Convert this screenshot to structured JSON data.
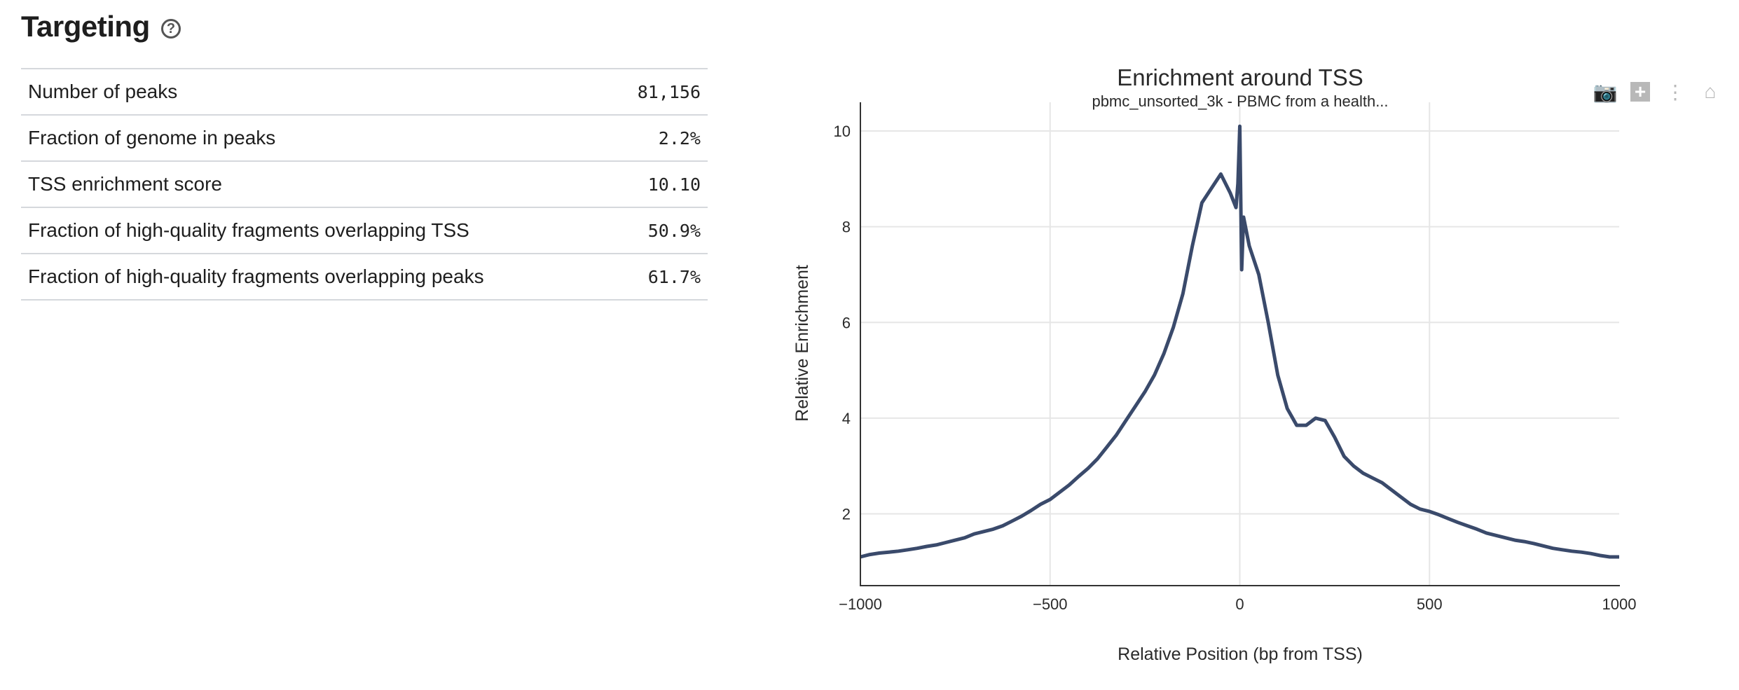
{
  "section": {
    "title": "Targeting",
    "help_icon": "question-circle-icon"
  },
  "metrics": [
    {
      "label": "Number of peaks",
      "value": "81,156"
    },
    {
      "label": "Fraction of genome in peaks",
      "value": "2.2%"
    },
    {
      "label": "TSS enrichment score",
      "value": "10.10"
    },
    {
      "label": "Fraction of high-quality fragments overlapping TSS",
      "value": "50.9%"
    },
    {
      "label": "Fraction of high-quality fragments overlapping peaks",
      "value": "61.7%"
    }
  ],
  "modebar": [
    "camera-icon",
    "zoom-in-icon",
    "autoscale-icon",
    "home-icon"
  ],
  "chart_data": {
    "type": "line",
    "title": "Enrichment around TSS",
    "subtitle": "pbmc_unsorted_3k - PBMC from a health...",
    "xlabel": "Relative Position (bp from TSS)",
    "ylabel": "Relative Enrichment",
    "xlim": [
      -1000,
      1000
    ],
    "ylim": [
      0.5,
      10.6
    ],
    "xticks": [
      -1000,
      -500,
      0,
      500,
      1000
    ],
    "xtick_labels": [
      "−1000",
      "−500",
      "0",
      "500",
      "1000"
    ],
    "yticks": [
      2,
      4,
      6,
      8,
      10
    ],
    "ytick_labels": [
      "2",
      "4",
      "6",
      "8",
      "10"
    ],
    "grid": true,
    "line_color": "#3a4a6b",
    "x": [
      -1000,
      -975,
      -950,
      -925,
      -900,
      -875,
      -850,
      -825,
      -800,
      -775,
      -750,
      -725,
      -700,
      -675,
      -650,
      -625,
      -600,
      -575,
      -550,
      -525,
      -500,
      -475,
      -450,
      -425,
      -400,
      -375,
      -350,
      -325,
      -300,
      -275,
      -250,
      -225,
      -200,
      -175,
      -150,
      -125,
      -100,
      -75,
      -50,
      -25,
      -10,
      -5,
      0,
      5,
      10,
      25,
      50,
      75,
      100,
      125,
      150,
      175,
      200,
      225,
      250,
      275,
      300,
      325,
      350,
      375,
      400,
      425,
      450,
      475,
      500,
      525,
      550,
      575,
      600,
      625,
      650,
      675,
      700,
      725,
      750,
      775,
      800,
      825,
      850,
      875,
      900,
      925,
      950,
      975,
      1000
    ],
    "y": [
      1.1,
      1.15,
      1.18,
      1.2,
      1.22,
      1.25,
      1.28,
      1.32,
      1.35,
      1.4,
      1.45,
      1.5,
      1.58,
      1.63,
      1.68,
      1.75,
      1.85,
      1.95,
      2.07,
      2.2,
      2.3,
      2.45,
      2.6,
      2.78,
      2.95,
      3.15,
      3.4,
      3.65,
      3.95,
      4.25,
      4.55,
      4.9,
      5.35,
      5.9,
      6.6,
      7.6,
      8.5,
      8.8,
      9.1,
      8.7,
      8.4,
      8.9,
      10.1,
      7.1,
      8.2,
      7.6,
      7.0,
      6.0,
      4.9,
      4.2,
      3.85,
      3.85,
      4.0,
      3.95,
      3.6,
      3.2,
      3.0,
      2.85,
      2.75,
      2.65,
      2.5,
      2.35,
      2.2,
      2.1,
      2.05,
      1.98,
      1.9,
      1.82,
      1.75,
      1.68,
      1.6,
      1.55,
      1.5,
      1.45,
      1.42,
      1.38,
      1.33,
      1.28,
      1.25,
      1.22,
      1.2,
      1.17,
      1.13,
      1.1,
      1.1
    ]
  }
}
